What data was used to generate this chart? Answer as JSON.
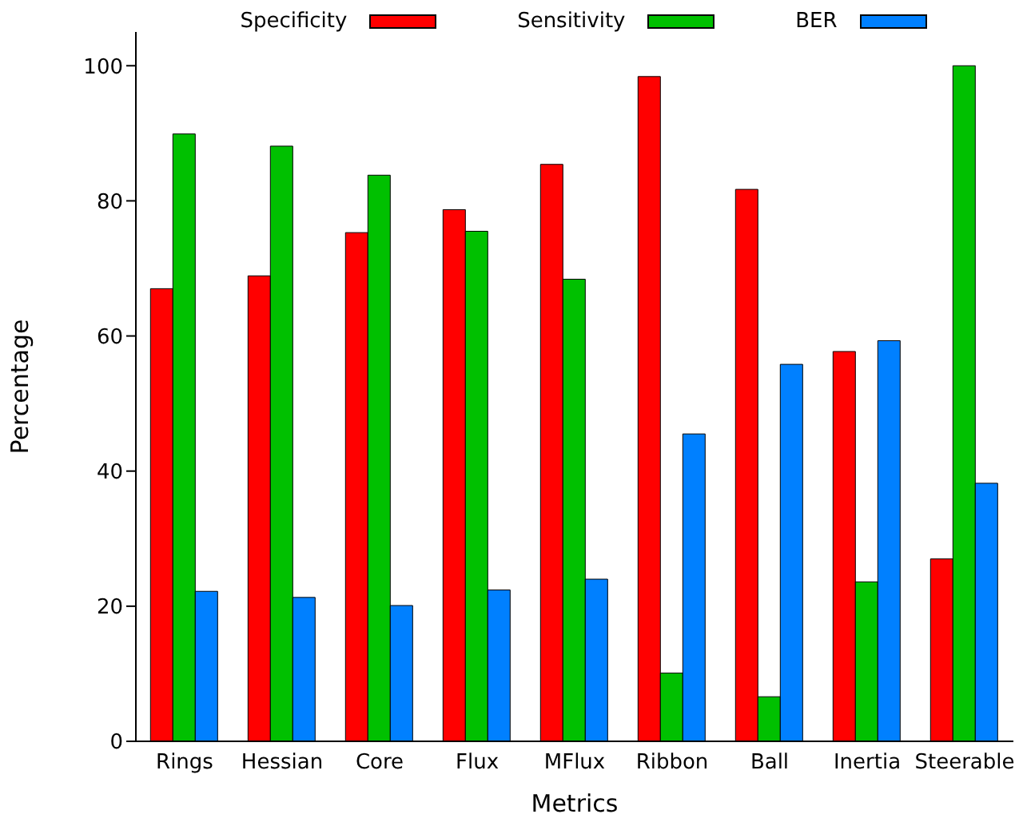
{
  "chart_data": {
    "type": "bar",
    "xlabel": "Metrics",
    "ylabel": "Percentage",
    "categories": [
      "Rings",
      "Hessian",
      "Core",
      "Flux",
      "MFlux",
      "Ribbon",
      "Ball",
      "Inertia",
      "Steerable"
    ],
    "series": [
      {
        "name": "Specificity",
        "color": "#ff0000",
        "values": [
          67.0,
          68.9,
          75.3,
          78.7,
          85.4,
          98.4,
          81.7,
          57.7,
          27.0
        ]
      },
      {
        "name": "Sensitivity",
        "color": "#00c000",
        "values": [
          89.9,
          88.1,
          83.8,
          75.5,
          68.4,
          10.1,
          6.6,
          23.6,
          100
        ]
      },
      {
        "name": "BER",
        "color": "#0080ff",
        "values": [
          22.2,
          21.3,
          20.1,
          22.4,
          24.0,
          45.5,
          55.8,
          59.3,
          38.2
        ]
      }
    ],
    "ylim": [
      0,
      105
    ],
    "yticks": [
      0,
      20,
      40,
      60,
      80,
      100
    ],
    "grid": false,
    "legend": "top"
  }
}
